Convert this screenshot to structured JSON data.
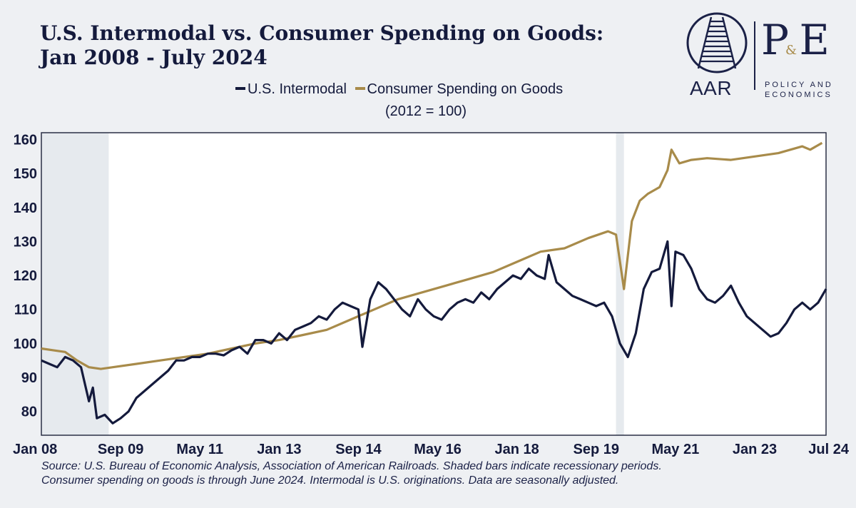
{
  "header": {
    "title_line1": "U.S. Intermodal vs. Consumer Spending on Goods:",
    "title_line2": "Jan 2008 - July 2024"
  },
  "logo": {
    "aar": "AAR",
    "pe": "P E",
    "pe_amp": "&",
    "pe_sub1": "POLICY AND",
    "pe_sub2": "ECONOMICS"
  },
  "source": {
    "line1": "Source: U.S. Bureau of Economic Analysis, Association of American Railroads. Shaded bars indicate recessionary periods.",
    "line2": "Consumer spending on goods is through June 2024. Intermodal is U.S. originations. Data are seasonally adjusted."
  },
  "chart_data": {
    "type": "line",
    "title": "U.S. Intermodal vs. Consumer Spending on Goods: Jan 2008 - July 2024",
    "note": "(2012 = 100)",
    "legend_position": "top-center",
    "ylim": [
      73,
      162
    ],
    "yticks": [
      80,
      90,
      100,
      110,
      120,
      130,
      140,
      150,
      160
    ],
    "xlim": [
      "2008-01",
      "2024-07"
    ],
    "xticks": [
      {
        "label": "Jan 08",
        "date": "2008-01"
      },
      {
        "label": "Sep 09",
        "date": "2009-09"
      },
      {
        "label": "May 11",
        "date": "2011-05"
      },
      {
        "label": "Jan 13",
        "date": "2013-01"
      },
      {
        "label": "Sep 14",
        "date": "2014-09"
      },
      {
        "label": "May 16",
        "date": "2016-05"
      },
      {
        "label": "Jan 18",
        "date": "2018-01"
      },
      {
        "label": "Sep 19",
        "date": "2019-09"
      },
      {
        "label": "May 21",
        "date": "2021-05"
      },
      {
        "label": "Jan 23",
        "date": "2023-01"
      },
      {
        "label": "Jul 24",
        "date": "2024-07"
      }
    ],
    "grid": false,
    "recessions": [
      {
        "start": "2008-01",
        "end": "2009-06"
      },
      {
        "start": "2020-02",
        "end": "2020-04"
      }
    ],
    "series": [
      {
        "name": "U.S. Intermodal",
        "color": "#141a3c",
        "points": [
          [
            "2008-01",
            95
          ],
          [
            "2008-03",
            94
          ],
          [
            "2008-05",
            93
          ],
          [
            "2008-07",
            96
          ],
          [
            "2008-09",
            95
          ],
          [
            "2008-11",
            93
          ],
          [
            "2009-01",
            83
          ],
          [
            "2009-02",
            87
          ],
          [
            "2009-03",
            78
          ],
          [
            "2009-05",
            79
          ],
          [
            "2009-07",
            76.5
          ],
          [
            "2009-09",
            78
          ],
          [
            "2009-11",
            80
          ],
          [
            "2010-01",
            84
          ],
          [
            "2010-03",
            86
          ],
          [
            "2010-05",
            88
          ],
          [
            "2010-07",
            90
          ],
          [
            "2010-09",
            92
          ],
          [
            "2010-11",
            95
          ],
          [
            "2011-01",
            95
          ],
          [
            "2011-03",
            96
          ],
          [
            "2011-05",
            96
          ],
          [
            "2011-07",
            97
          ],
          [
            "2011-09",
            97
          ],
          [
            "2011-11",
            96.5
          ],
          [
            "2012-01",
            98
          ],
          [
            "2012-03",
            99
          ],
          [
            "2012-05",
            97
          ],
          [
            "2012-07",
            101
          ],
          [
            "2012-09",
            101
          ],
          [
            "2012-11",
            100
          ],
          [
            "2013-01",
            103
          ],
          [
            "2013-03",
            101
          ],
          [
            "2013-05",
            104
          ],
          [
            "2013-07",
            105
          ],
          [
            "2013-09",
            106
          ],
          [
            "2013-11",
            108
          ],
          [
            "2014-01",
            107
          ],
          [
            "2014-03",
            110
          ],
          [
            "2014-05",
            112
          ],
          [
            "2014-07",
            111
          ],
          [
            "2014-09",
            110
          ],
          [
            "2014-10",
            99
          ],
          [
            "2014-12",
            113
          ],
          [
            "2015-02",
            118
          ],
          [
            "2015-04",
            116
          ],
          [
            "2015-06",
            113
          ],
          [
            "2015-08",
            110
          ],
          [
            "2015-10",
            108
          ],
          [
            "2015-12",
            113
          ],
          [
            "2016-02",
            110
          ],
          [
            "2016-04",
            108
          ],
          [
            "2016-06",
            107
          ],
          [
            "2016-08",
            110
          ],
          [
            "2016-10",
            112
          ],
          [
            "2016-12",
            113
          ],
          [
            "2017-02",
            112
          ],
          [
            "2017-04",
            115
          ],
          [
            "2017-06",
            113
          ],
          [
            "2017-08",
            116
          ],
          [
            "2017-10",
            118
          ],
          [
            "2017-12",
            120
          ],
          [
            "2018-02",
            119
          ],
          [
            "2018-04",
            122
          ],
          [
            "2018-06",
            120
          ],
          [
            "2018-08",
            119
          ],
          [
            "2018-09",
            126
          ],
          [
            "2018-11",
            118
          ],
          [
            "2019-01",
            116
          ],
          [
            "2019-03",
            114
          ],
          [
            "2019-05",
            113
          ],
          [
            "2019-07",
            112
          ],
          [
            "2019-09",
            111
          ],
          [
            "2019-11",
            112
          ],
          [
            "2020-01",
            108
          ],
          [
            "2020-03",
            100
          ],
          [
            "2020-05",
            96
          ],
          [
            "2020-07",
            103
          ],
          [
            "2020-09",
            116
          ],
          [
            "2020-11",
            121
          ],
          [
            "2021-01",
            122
          ],
          [
            "2021-03",
            130
          ],
          [
            "2021-04",
            111
          ],
          [
            "2021-05",
            127
          ],
          [
            "2021-07",
            126
          ],
          [
            "2021-09",
            122
          ],
          [
            "2021-11",
            116
          ],
          [
            "2022-01",
            113
          ],
          [
            "2022-03",
            112
          ],
          [
            "2022-05",
            114
          ],
          [
            "2022-07",
            117
          ],
          [
            "2022-09",
            112
          ],
          [
            "2022-11",
            108
          ],
          [
            "2023-01",
            106
          ],
          [
            "2023-03",
            104
          ],
          [
            "2023-05",
            102
          ],
          [
            "2023-07",
            103
          ],
          [
            "2023-09",
            106
          ],
          [
            "2023-11",
            110
          ],
          [
            "2024-01",
            112
          ],
          [
            "2024-03",
            110
          ],
          [
            "2024-05",
            112
          ],
          [
            "2024-07",
            116
          ]
        ]
      },
      {
        "name": "Consumer Spending on Goods",
        "color": "#a88b4a",
        "points": [
          [
            "2008-01",
            98.5
          ],
          [
            "2008-04",
            98
          ],
          [
            "2008-07",
            97.5
          ],
          [
            "2008-10",
            95
          ],
          [
            "2009-01",
            93
          ],
          [
            "2009-04",
            92.5
          ],
          [
            "2009-07",
            93
          ],
          [
            "2010-01",
            94
          ],
          [
            "2010-07",
            95
          ],
          [
            "2011-01",
            96
          ],
          [
            "2011-07",
            97
          ],
          [
            "2012-01",
            98.5
          ],
          [
            "2012-07",
            100
          ],
          [
            "2013-01",
            101
          ],
          [
            "2013-07",
            102.5
          ],
          [
            "2014-01",
            104
          ],
          [
            "2014-07",
            107
          ],
          [
            "2015-01",
            110
          ],
          [
            "2015-07",
            113
          ],
          [
            "2016-01",
            115
          ],
          [
            "2016-07",
            117
          ],
          [
            "2017-01",
            119
          ],
          [
            "2017-07",
            121
          ],
          [
            "2018-01",
            124
          ],
          [
            "2018-07",
            127
          ],
          [
            "2019-01",
            128
          ],
          [
            "2019-07",
            131
          ],
          [
            "2019-12",
            133
          ],
          [
            "2020-02",
            132
          ],
          [
            "2020-04",
            116
          ],
          [
            "2020-06",
            136
          ],
          [
            "2020-08",
            142
          ],
          [
            "2020-10",
            144
          ],
          [
            "2021-01",
            146
          ],
          [
            "2021-03",
            151
          ],
          [
            "2021-04",
            157
          ],
          [
            "2021-06",
            153
          ],
          [
            "2021-09",
            154
          ],
          [
            "2022-01",
            154.5
          ],
          [
            "2022-07",
            154
          ],
          [
            "2023-01",
            155
          ],
          [
            "2023-07",
            156
          ],
          [
            "2024-01",
            158
          ],
          [
            "2024-03",
            157
          ],
          [
            "2024-06",
            159
          ]
        ]
      }
    ]
  }
}
